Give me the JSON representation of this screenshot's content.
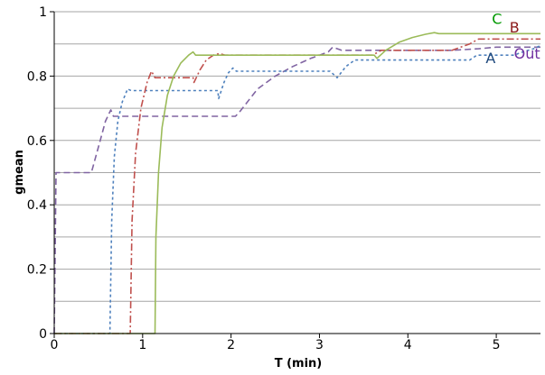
{
  "chart_data": {
    "type": "line",
    "title": "",
    "xlabel": "T (min)",
    "ylabel": "gmean",
    "xlim": [
      0,
      5.5
    ],
    "ylim": [
      0,
      1
    ],
    "x_ticks": [
      0,
      1,
      2,
      3,
      4,
      5
    ],
    "y_ticks": [
      0,
      0.2,
      0.4,
      0.6,
      0.8,
      1
    ],
    "y_tick_labels": [
      "0",
      "0.2",
      "0.4",
      "0.6",
      "0.8",
      "1"
    ],
    "grid": "horizontal",
    "legend": "inline labels at right end of lines",
    "series": [
      {
        "name": "Out",
        "color": "#8064a2",
        "dash": "7,4",
        "points": [
          [
            0,
            0
          ],
          [
            0.02,
            0.5
          ],
          [
            0.42,
            0.5
          ],
          [
            0.52,
            0.6
          ],
          [
            0.58,
            0.66
          ],
          [
            0.64,
            0.695
          ],
          [
            0.67,
            0.675
          ],
          [
            2.05,
            0.675
          ],
          [
            2.1,
            0.69
          ],
          [
            2.3,
            0.76
          ],
          [
            2.5,
            0.8
          ],
          [
            2.7,
            0.83
          ],
          [
            2.9,
            0.855
          ],
          [
            3.1,
            0.875
          ],
          [
            3.15,
            0.89
          ],
          [
            3.25,
            0.88
          ],
          [
            4.5,
            0.88
          ],
          [
            4.8,
            0.885
          ],
          [
            5.0,
            0.89
          ],
          [
            5.5,
            0.89
          ]
        ]
      },
      {
        "name": "A",
        "color": "#4f81bd",
        "dash": "3,3",
        "points": [
          [
            0,
            0
          ],
          [
            0.63,
            0
          ],
          [
            0.65,
            0.35
          ],
          [
            0.68,
            0.55
          ],
          [
            0.72,
            0.66
          ],
          [
            0.77,
            0.72
          ],
          [
            0.83,
            0.76
          ],
          [
            0.87,
            0.755
          ],
          [
            1.85,
            0.755
          ],
          [
            1.86,
            0.73
          ],
          [
            1.92,
            0.78
          ],
          [
            1.97,
            0.81
          ],
          [
            2.02,
            0.825
          ],
          [
            2.06,
            0.815
          ],
          [
            3.12,
            0.815
          ],
          [
            3.2,
            0.795
          ],
          [
            3.3,
            0.83
          ],
          [
            3.4,
            0.85
          ],
          [
            4.7,
            0.85
          ],
          [
            4.78,
            0.865
          ],
          [
            5.2,
            0.865
          ],
          [
            5.3,
            0.875
          ],
          [
            5.42,
            0.885
          ],
          [
            5.5,
            0.895
          ]
        ]
      },
      {
        "name": "B",
        "color": "#c0504d",
        "dash": "8,3,2,3",
        "points": [
          [
            0,
            0
          ],
          [
            0.86,
            0
          ],
          [
            0.88,
            0.35
          ],
          [
            0.92,
            0.56
          ],
          [
            0.98,
            0.7
          ],
          [
            1.05,
            0.78
          ],
          [
            1.1,
            0.815
          ],
          [
            1.14,
            0.795
          ],
          [
            1.57,
            0.795
          ],
          [
            1.58,
            0.78
          ],
          [
            1.65,
            0.82
          ],
          [
            1.72,
            0.85
          ],
          [
            1.8,
            0.865
          ],
          [
            1.87,
            0.87
          ],
          [
            1.93,
            0.865
          ],
          [
            3.6,
            0.865
          ],
          [
            3.7,
            0.88
          ],
          [
            4.5,
            0.88
          ],
          [
            4.7,
            0.9
          ],
          [
            4.8,
            0.915
          ],
          [
            5.5,
            0.915
          ]
        ]
      },
      {
        "name": "C",
        "color": "#9bbb59",
        "dash": "",
        "points": [
          [
            0,
            0
          ],
          [
            1.14,
            0
          ],
          [
            1.15,
            0.3
          ],
          [
            1.18,
            0.5
          ],
          [
            1.22,
            0.64
          ],
          [
            1.28,
            0.74
          ],
          [
            1.35,
            0.8
          ],
          [
            1.43,
            0.84
          ],
          [
            1.52,
            0.865
          ],
          [
            1.57,
            0.875
          ],
          [
            1.6,
            0.865
          ],
          [
            3.62,
            0.865
          ],
          [
            3.65,
            0.855
          ],
          [
            3.75,
            0.88
          ],
          [
            3.9,
            0.905
          ],
          [
            4.05,
            0.92
          ],
          [
            4.2,
            0.93
          ],
          [
            4.3,
            0.935
          ],
          [
            4.35,
            0.932
          ],
          [
            5.5,
            0.932
          ]
        ]
      }
    ],
    "labels": [
      {
        "series": "C",
        "text": "C",
        "color": "#009900",
        "at": [
          4.95,
          0.962
        ]
      },
      {
        "series": "B",
        "text": "B",
        "color": "#8b1a1a",
        "at": [
          5.15,
          0.935
        ]
      },
      {
        "series": "Out",
        "text": "Out",
        "color": "#7030a0",
        "at": [
          5.2,
          0.855
        ]
      },
      {
        "series": "A",
        "text": "A",
        "color": "#1f497d",
        "at": [
          4.88,
          0.84
        ]
      }
    ]
  }
}
